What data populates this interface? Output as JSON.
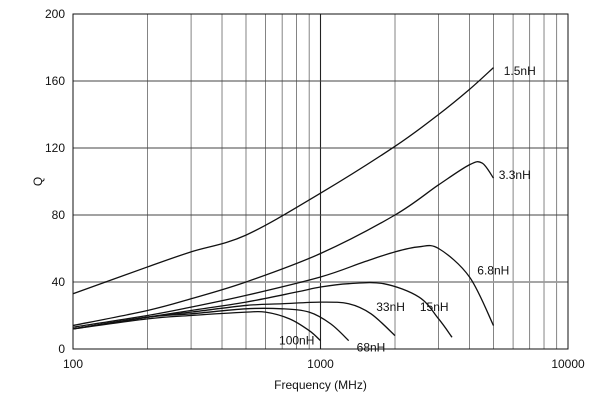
{
  "chart_data": {
    "type": "line",
    "xlabel": "Frequency (MHz)",
    "ylabel": "Q",
    "x_scale": "log",
    "xlim": [
      100,
      10000
    ],
    "ylim": [
      0,
      200
    ],
    "grid": true,
    "x_ticks": [
      100,
      1000,
      10000
    ],
    "x_tick_labels": [
      "100",
      "1000",
      "10000"
    ],
    "y_ticks": [
      0,
      40,
      80,
      120,
      160,
      200
    ],
    "y_tick_labels": [
      "0",
      "40",
      "80",
      "120",
      "160",
      "200"
    ],
    "series": [
      {
        "name": "1.5nH",
        "points": [
          [
            100,
            33
          ],
          [
            200,
            49
          ],
          [
            300,
            58
          ],
          [
            500,
            68
          ],
          [
            1000,
            93
          ],
          [
            2000,
            121
          ],
          [
            3000,
            140
          ],
          [
            4000,
            155
          ],
          [
            5000,
            168
          ]
        ]
      },
      {
        "name": "3.3nH",
        "points": [
          [
            100,
            14
          ],
          [
            200,
            23
          ],
          [
            300,
            30
          ],
          [
            500,
            40
          ],
          [
            1000,
            57
          ],
          [
            2000,
            80
          ],
          [
            3000,
            98
          ],
          [
            4000,
            110
          ],
          [
            4500,
            111
          ],
          [
            5000,
            102
          ]
        ]
      },
      {
        "name": "6.8nH",
        "points": [
          [
            100,
            13
          ],
          [
            200,
            20
          ],
          [
            300,
            25
          ],
          [
            500,
            32
          ],
          [
            1000,
            43
          ],
          [
            1500,
            52
          ],
          [
            2000,
            58
          ],
          [
            2500,
            61
          ],
          [
            3000,
            60
          ],
          [
            4000,
            43
          ],
          [
            5000,
            14
          ]
        ]
      },
      {
        "name": "15nH",
        "points": [
          [
            100,
            12
          ],
          [
            200,
            19
          ],
          [
            300,
            23
          ],
          [
            500,
            28
          ],
          [
            800,
            34
          ],
          [
            1000,
            37
          ],
          [
            1300,
            39
          ],
          [
            1800,
            39
          ],
          [
            2500,
            31
          ],
          [
            3000,
            18
          ],
          [
            3400,
            7
          ]
        ]
      },
      {
        "name": "33nH",
        "points": [
          [
            100,
            12
          ],
          [
            200,
            19
          ],
          [
            300,
            22
          ],
          [
            500,
            26
          ],
          [
            700,
            27
          ],
          [
            1000,
            28
          ],
          [
            1300,
            27
          ],
          [
            1600,
            21
          ],
          [
            2000,
            8
          ]
        ]
      },
      {
        "name": "68nH",
        "points": [
          [
            100,
            12
          ],
          [
            200,
            19
          ],
          [
            300,
            21
          ],
          [
            500,
            24
          ],
          [
            700,
            24
          ],
          [
            900,
            22
          ],
          [
            1100,
            15
          ],
          [
            1300,
            5
          ]
        ]
      },
      {
        "name": "100nH",
        "points": [
          [
            100,
            12
          ],
          [
            200,
            18
          ],
          [
            300,
            20
          ],
          [
            500,
            22
          ],
          [
            600,
            22
          ],
          [
            750,
            18
          ],
          [
            900,
            11
          ],
          [
            1000,
            5
          ]
        ]
      }
    ],
    "curve_labels": [
      "1.5nH",
      "3.3nH",
      "6.8nH",
      "15nH",
      "33nH",
      "68nH",
      "100nH"
    ]
  }
}
